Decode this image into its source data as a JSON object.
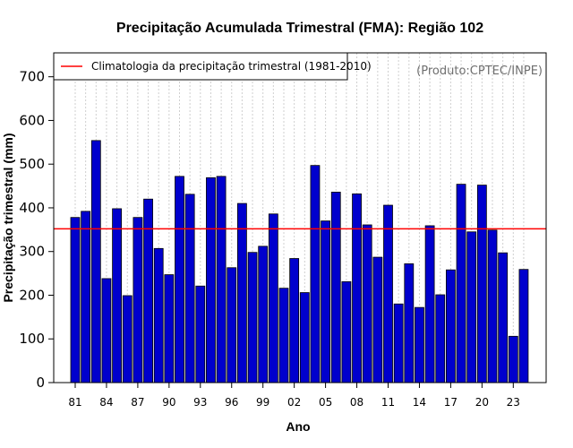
{
  "chart_data": {
    "type": "bar",
    "title": "Precipitação Acumulada Trimestral (FMA): Região 102",
    "xlabel": "Ano",
    "ylabel": "Precipitação trimestral (mm)",
    "ylim": [
      0,
      750
    ],
    "yticks": [
      "0",
      "100",
      "200",
      "300",
      "400",
      "500",
      "600",
      "700"
    ],
    "ytick_values": [
      0,
      100,
      200,
      300,
      400,
      500,
      600,
      700
    ],
    "grid": "vertical dotted",
    "categories": [
      "1981",
      "1982",
      "1983",
      "1984",
      "1985",
      "1986",
      "1987",
      "1988",
      "1989",
      "1990",
      "1991",
      "1992",
      "1993",
      "1994",
      "1995",
      "1996",
      "1997",
      "1998",
      "1999",
      "2000",
      "2001",
      "2002",
      "2003",
      "2004",
      "2005",
      "2006",
      "2007",
      "2008",
      "2009",
      "2010",
      "2011",
      "2012",
      "2013",
      "2014",
      "2015",
      "2016",
      "2017",
      "2018",
      "2019",
      "2020",
      "2021",
      "2022",
      "2023",
      "2024"
    ],
    "values": [
      378,
      392,
      554,
      238,
      398,
      199,
      378,
      420,
      307,
      247,
      472,
      431,
      221,
      469,
      472,
      263,
      410,
      298,
      312,
      386,
      216,
      284,
      206,
      497,
      370,
      436,
      231,
      432,
      361,
      287,
      406,
      180,
      272,
      172,
      359,
      201,
      258,
      454,
      345,
      452,
      349,
      297,
      106,
      259
    ],
    "xtick_labels": [
      {
        "index": 0,
        "label": "81"
      },
      {
        "index": 3,
        "label": "84"
      },
      {
        "index": 6,
        "label": "87"
      },
      {
        "index": 9,
        "label": "90"
      },
      {
        "index": 12,
        "label": "93"
      },
      {
        "index": 15,
        "label": "96"
      },
      {
        "index": 18,
        "label": "99"
      },
      {
        "index": 21,
        "label": "02"
      },
      {
        "index": 24,
        "label": "05"
      },
      {
        "index": 27,
        "label": "08"
      },
      {
        "index": 30,
        "label": "11"
      },
      {
        "index": 33,
        "label": "14"
      },
      {
        "index": 36,
        "label": "17"
      },
      {
        "index": 39,
        "label": "20"
      },
      {
        "index": 42,
        "label": "23"
      }
    ],
    "climatology": {
      "value": 352,
      "label": "Climatologia da precipitação trimestral (1981-2010)"
    },
    "legend_position": "top-left",
    "source_note": "(Produto:CPTEC/INPE)"
  },
  "colors": {
    "bar_fill": "#0000cd",
    "bar_edge": "#000000",
    "climatology_line": "#ff0000",
    "grid": "#cfcfcf",
    "source_text": "#6e6e6e"
  }
}
